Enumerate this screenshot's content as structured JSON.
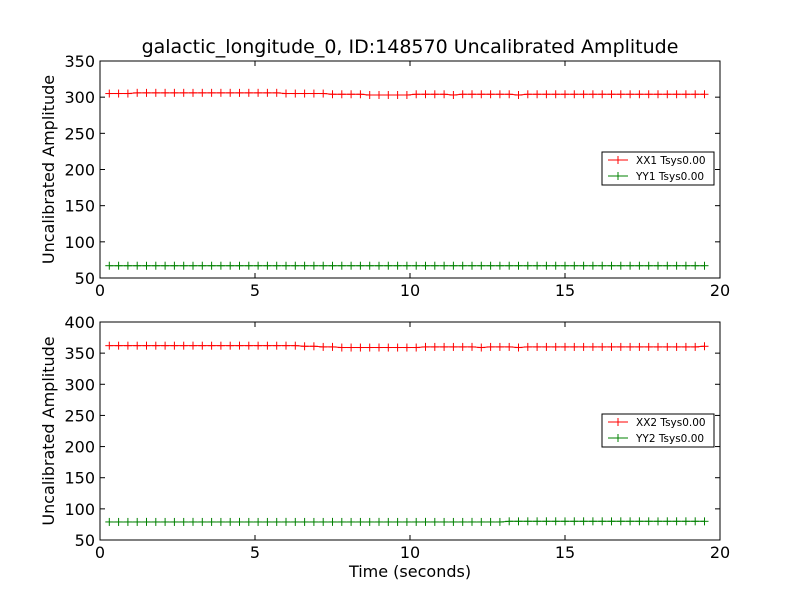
{
  "chart_data": {
    "type": "line",
    "title": "galactic_longitude_0, ID:148570 Uncalibrated Amplitude",
    "xlabel": "Time (seconds)",
    "panels": [
      {
        "id": "top",
        "ylabel": "Uncalibrated Amplitude",
        "xlim": [
          0,
          20
        ],
        "ylim": [
          50,
          350
        ],
        "xticks": [
          0,
          5,
          10,
          15,
          20
        ],
        "yticks": [
          50,
          100,
          150,
          200,
          250,
          300,
          350
        ],
        "legend_position": "center-right",
        "x": [
          0.3,
          0.6,
          0.9,
          1.2,
          1.5,
          1.8,
          2.1,
          2.4,
          2.7,
          3.0,
          3.3,
          3.6,
          3.9,
          4.2,
          4.5,
          4.8,
          5.1,
          5.4,
          5.7,
          6.0,
          6.3,
          6.6,
          6.9,
          7.2,
          7.5,
          7.8,
          8.1,
          8.4,
          8.7,
          9.0,
          9.3,
          9.6,
          9.9,
          10.2,
          10.5,
          10.8,
          11.1,
          11.4,
          11.7,
          12.0,
          12.3,
          12.6,
          12.9,
          13.2,
          13.5,
          13.8,
          14.1,
          14.4,
          14.7,
          15.0,
          15.3,
          15.6,
          15.9,
          16.2,
          16.5,
          16.8,
          17.1,
          17.4,
          17.7,
          18.0,
          18.3,
          18.6,
          18.9,
          19.2,
          19.5
        ],
        "series": [
          {
            "name": "XX1 Tsys0.00",
            "color": "#ff0000",
            "values": [
              305,
              305,
              305,
              306,
              306,
              306,
              306,
              306,
              306,
              306,
              306,
              306,
              306,
              306,
              306,
              306,
              306,
              306,
              306,
              305,
              305,
              305,
              305,
              305,
              304,
              304,
              304,
              304,
              303,
              303,
              303,
              303,
              303,
              304,
              304,
              304,
              304,
              303,
              304,
              304,
              304,
              304,
              304,
              304,
              303,
              304,
              304,
              304,
              304,
              304,
              304,
              304,
              304,
              304,
              304,
              304,
              304,
              304,
              304,
              304,
              304,
              304,
              304,
              304,
              304
            ]
          },
          {
            "name": "YY1 Tsys0.00",
            "color": "#008000",
            "values": [
              67,
              67,
              67,
              67,
              67,
              67,
              67,
              67,
              67,
              67,
              67,
              67,
              67,
              67,
              67,
              67,
              67,
              67,
              67,
              67,
              67,
              67,
              67,
              67,
              67,
              67,
              67,
              67,
              67,
              67,
              67,
              67,
              67,
              67,
              67,
              67,
              67,
              67,
              67,
              67,
              67,
              67,
              67,
              67,
              67,
              67,
              67,
              67,
              67,
              67,
              67,
              67,
              67,
              67,
              67,
              67,
              67,
              67,
              67,
              67,
              67,
              67,
              67,
              67,
              67
            ]
          }
        ]
      },
      {
        "id": "bottom",
        "ylabel": "Uncalibrated Amplitude",
        "xlabel": "Time (seconds)",
        "xlim": [
          0,
          20
        ],
        "ylim": [
          50,
          400
        ],
        "xticks": [
          0,
          5,
          10,
          15,
          20
        ],
        "yticks": [
          50,
          100,
          150,
          200,
          250,
          300,
          350,
          400
        ],
        "legend_position": "center-right",
        "x": [
          0.3,
          0.6,
          0.9,
          1.2,
          1.5,
          1.8,
          2.1,
          2.4,
          2.7,
          3.0,
          3.3,
          3.6,
          3.9,
          4.2,
          4.5,
          4.8,
          5.1,
          5.4,
          5.7,
          6.0,
          6.3,
          6.6,
          6.9,
          7.2,
          7.5,
          7.8,
          8.1,
          8.4,
          8.7,
          9.0,
          9.3,
          9.6,
          9.9,
          10.2,
          10.5,
          10.8,
          11.1,
          11.4,
          11.7,
          12.0,
          12.3,
          12.6,
          12.9,
          13.2,
          13.5,
          13.8,
          14.1,
          14.4,
          14.7,
          15.0,
          15.3,
          15.6,
          15.9,
          16.2,
          16.5,
          16.8,
          17.1,
          17.4,
          17.7,
          18.0,
          18.3,
          18.6,
          18.9,
          19.2,
          19.5
        ],
        "series": [
          {
            "name": "XX2 Tsys0.00",
            "color": "#ff0000",
            "values": [
              362,
              362,
              362,
              362,
              362,
              362,
              362,
              362,
              362,
              362,
              362,
              362,
              362,
              362,
              362,
              362,
              362,
              362,
              362,
              362,
              362,
              361,
              361,
              360,
              360,
              359,
              359,
              359,
              359,
              359,
              359,
              359,
              359,
              359,
              360,
              360,
              360,
              360,
              360,
              360,
              359,
              360,
              360,
              360,
              359,
              360,
              360,
              360,
              360,
              360,
              360,
              360,
              360,
              360,
              360,
              360,
              360,
              360,
              360,
              360,
              360,
              360,
              360,
              360,
              361
            ]
          },
          {
            "name": "YY2 Tsys0.00",
            "color": "#008000",
            "values": [
              79,
              79,
              79,
              79,
              79,
              79,
              79,
              79,
              79,
              79,
              79,
              79,
              79,
              79,
              79,
              79,
              79,
              79,
              79,
              79,
              79,
              79,
              79,
              79,
              79,
              79,
              79,
              79,
              79,
              79,
              79,
              79,
              79,
              79,
              79,
              79,
              79,
              79,
              79,
              79,
              79,
              79,
              79,
              80,
              80,
              80,
              80,
              80,
              80,
              80,
              80,
              80,
              80,
              80,
              80,
              80,
              80,
              80,
              80,
              80,
              80,
              80,
              80,
              80,
              80
            ]
          }
        ]
      }
    ]
  }
}
